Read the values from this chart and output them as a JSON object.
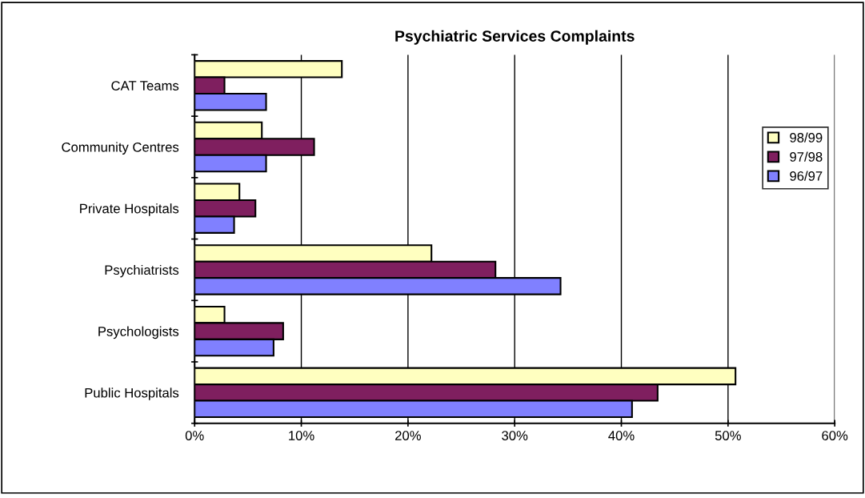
{
  "chart_data": {
    "type": "bar",
    "orientation": "horizontal",
    "title": "Psychiatric Services Complaints",
    "categories": [
      "CAT Teams",
      "Community Centres",
      "Private Hospitals",
      "Psychiatrists",
      "Psychologists",
      "Public Hospitals"
    ],
    "series": [
      {
        "name": "98/99",
        "color": "#ffffc0",
        "values": [
          13.8,
          6.3,
          4.2,
          22.2,
          2.8,
          50.7
        ]
      },
      {
        "name": "97/98",
        "color": "#7f1f5f",
        "values": [
          2.8,
          11.2,
          5.7,
          28.2,
          8.3,
          43.4
        ]
      },
      {
        "name": "96/97",
        "color": "#8080ff",
        "values": [
          6.7,
          6.7,
          3.7,
          34.3,
          7.4,
          41.0
        ]
      }
    ],
    "xlim": [
      0,
      60
    ],
    "xticks": [
      {
        "value": 0,
        "label": "0%"
      },
      {
        "value": 10,
        "label": "10%"
      },
      {
        "value": 20,
        "label": "20%"
      },
      {
        "value": 30,
        "label": "30%"
      },
      {
        "value": 40,
        "label": "40%"
      },
      {
        "value": 50,
        "label": "50%"
      },
      {
        "value": 60,
        "label": "60%"
      }
    ],
    "grid": "x",
    "legend": "right"
  }
}
